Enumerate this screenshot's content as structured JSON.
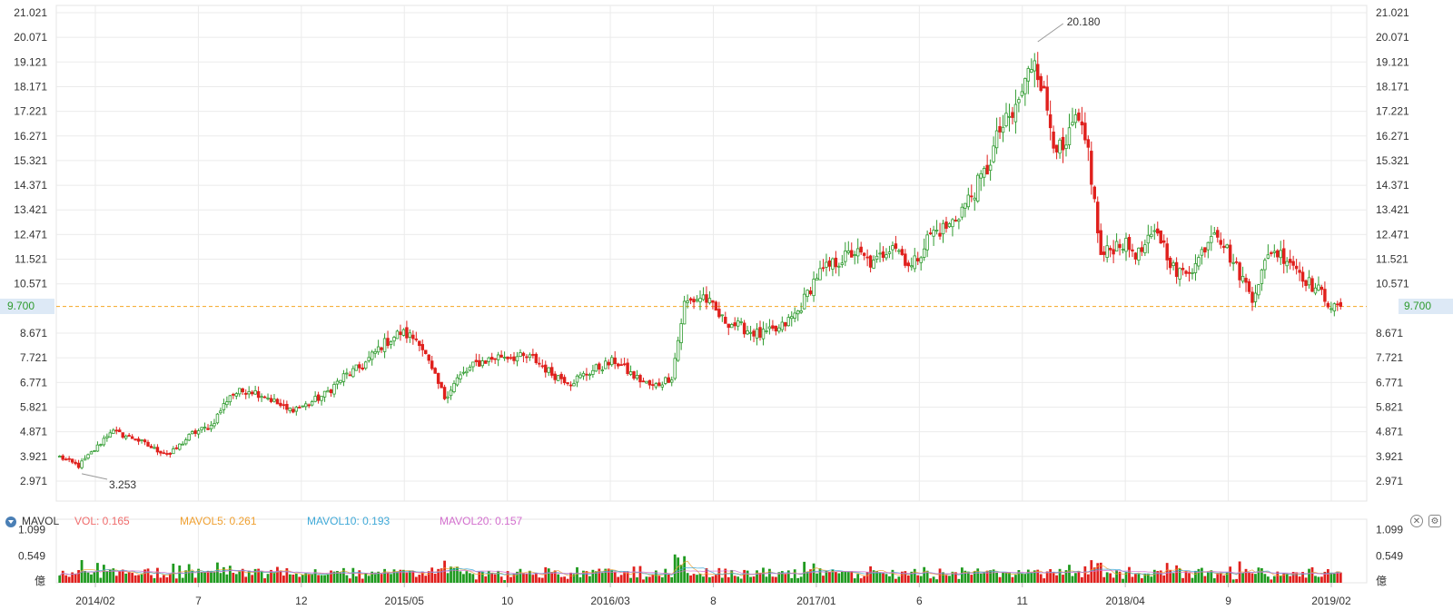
{
  "chart_data": {
    "type": "candlestick",
    "x_tick_labels": [
      "2014/02",
      "7",
      "12",
      "2015/05",
      "10",
      "2016/03",
      "8",
      "2017/01",
      "6",
      "11",
      "2018/04",
      "9",
      "2019/02"
    ],
    "y_ticks": [
      "21.021",
      "20.071",
      "19.121",
      "18.171",
      "17.221",
      "16.271",
      "15.321",
      "14.371",
      "13.421",
      "12.471",
      "11.521",
      "10.571",
      "9.700",
      "8.671",
      "7.721",
      "6.771",
      "5.821",
      "4.871",
      "3.921",
      "2.971"
    ],
    "ylim": [
      2.2,
      21.3
    ],
    "current_price": 9.7,
    "current_price_label": "9.700",
    "high_label": "20.180",
    "high_value": 20.18,
    "low_label": "3.253",
    "low_value": 3.253,
    "price_path": [
      [
        0,
        3.9
      ],
      [
        6,
        3.55
      ],
      [
        12,
        4.3
      ],
      [
        16,
        4.9
      ],
      [
        24,
        4.6
      ],
      [
        30,
        4.2
      ],
      [
        35,
        4.0
      ],
      [
        42,
        4.8
      ],
      [
        48,
        5.1
      ],
      [
        54,
        6.3
      ],
      [
        60,
        6.5
      ],
      [
        66,
        6.2
      ],
      [
        72,
        5.7
      ],
      [
        78,
        5.9
      ],
      [
        84,
        6.3
      ],
      [
        90,
        7.0
      ],
      [
        96,
        7.4
      ],
      [
        102,
        8.2
      ],
      [
        108,
        8.7
      ],
      [
        114,
        8.4
      ],
      [
        118,
        7.2
      ],
      [
        122,
        6.2
      ],
      [
        126,
        6.9
      ],
      [
        132,
        7.5
      ],
      [
        140,
        7.8
      ],
      [
        150,
        7.7
      ],
      [
        156,
        7.1
      ],
      [
        162,
        6.8
      ],
      [
        170,
        7.3
      ],
      [
        176,
        7.6
      ],
      [
        182,
        7.0
      ],
      [
        188,
        6.6
      ],
      [
        194,
        7.0
      ],
      [
        198,
        9.8
      ],
      [
        204,
        10.1
      ],
      [
        210,
        9.2
      ],
      [
        216,
        8.9
      ],
      [
        222,
        8.6
      ],
      [
        228,
        8.8
      ],
      [
        234,
        9.5
      ],
      [
        240,
        10.9
      ],
      [
        246,
        11.4
      ],
      [
        252,
        11.8
      ],
      [
        258,
        11.3
      ],
      [
        264,
        12.2
      ],
      [
        270,
        11.2
      ],
      [
        276,
        12.5
      ],
      [
        282,
        12.8
      ],
      [
        288,
        13.8
      ],
      [
        294,
        15.0
      ],
      [
        298,
        16.5
      ],
      [
        302,
        17.0
      ],
      [
        306,
        18.3
      ],
      [
        309,
        19.4
      ],
      [
        312,
        17.8
      ],
      [
        315,
        16.2
      ],
      [
        318,
        15.5
      ],
      [
        322,
        16.9
      ],
      [
        326,
        15.7
      ],
      [
        330,
        11.6
      ],
      [
        336,
        12.2
      ],
      [
        342,
        11.7
      ],
      [
        348,
        12.6
      ],
      [
        354,
        10.9
      ],
      [
        360,
        11.3
      ],
      [
        366,
        12.8
      ],
      [
        372,
        11.4
      ],
      [
        378,
        10.1
      ],
      [
        384,
        11.9
      ],
      [
        390,
        11.5
      ],
      [
        396,
        10.6
      ],
      [
        400,
        10.2
      ],
      [
        404,
        9.6
      ],
      [
        406,
        9.7
      ]
    ],
    "volume": {
      "ylim": [
        0,
        1.2
      ],
      "y_ticks": [
        "1.099",
        "0.549"
      ],
      "unit_label": "億",
      "indicator": "MAVOL",
      "legend": [
        {
          "label": "VOL: 0.165",
          "color": "#f06d6d"
        },
        {
          "label": "MAVOL5: 0.261",
          "color": "#f0a030"
        },
        {
          "label": "MAVOL10: 0.193",
          "color": "#3fa9d8"
        },
        {
          "label": "MAVOL20: 0.157",
          "color": "#d36fce"
        }
      ]
    },
    "colors": {
      "up": "#2f9b2f",
      "down": "#e0201d",
      "grid": "#ebebeb",
      "price_line": "#f5a623"
    },
    "grid": true
  }
}
